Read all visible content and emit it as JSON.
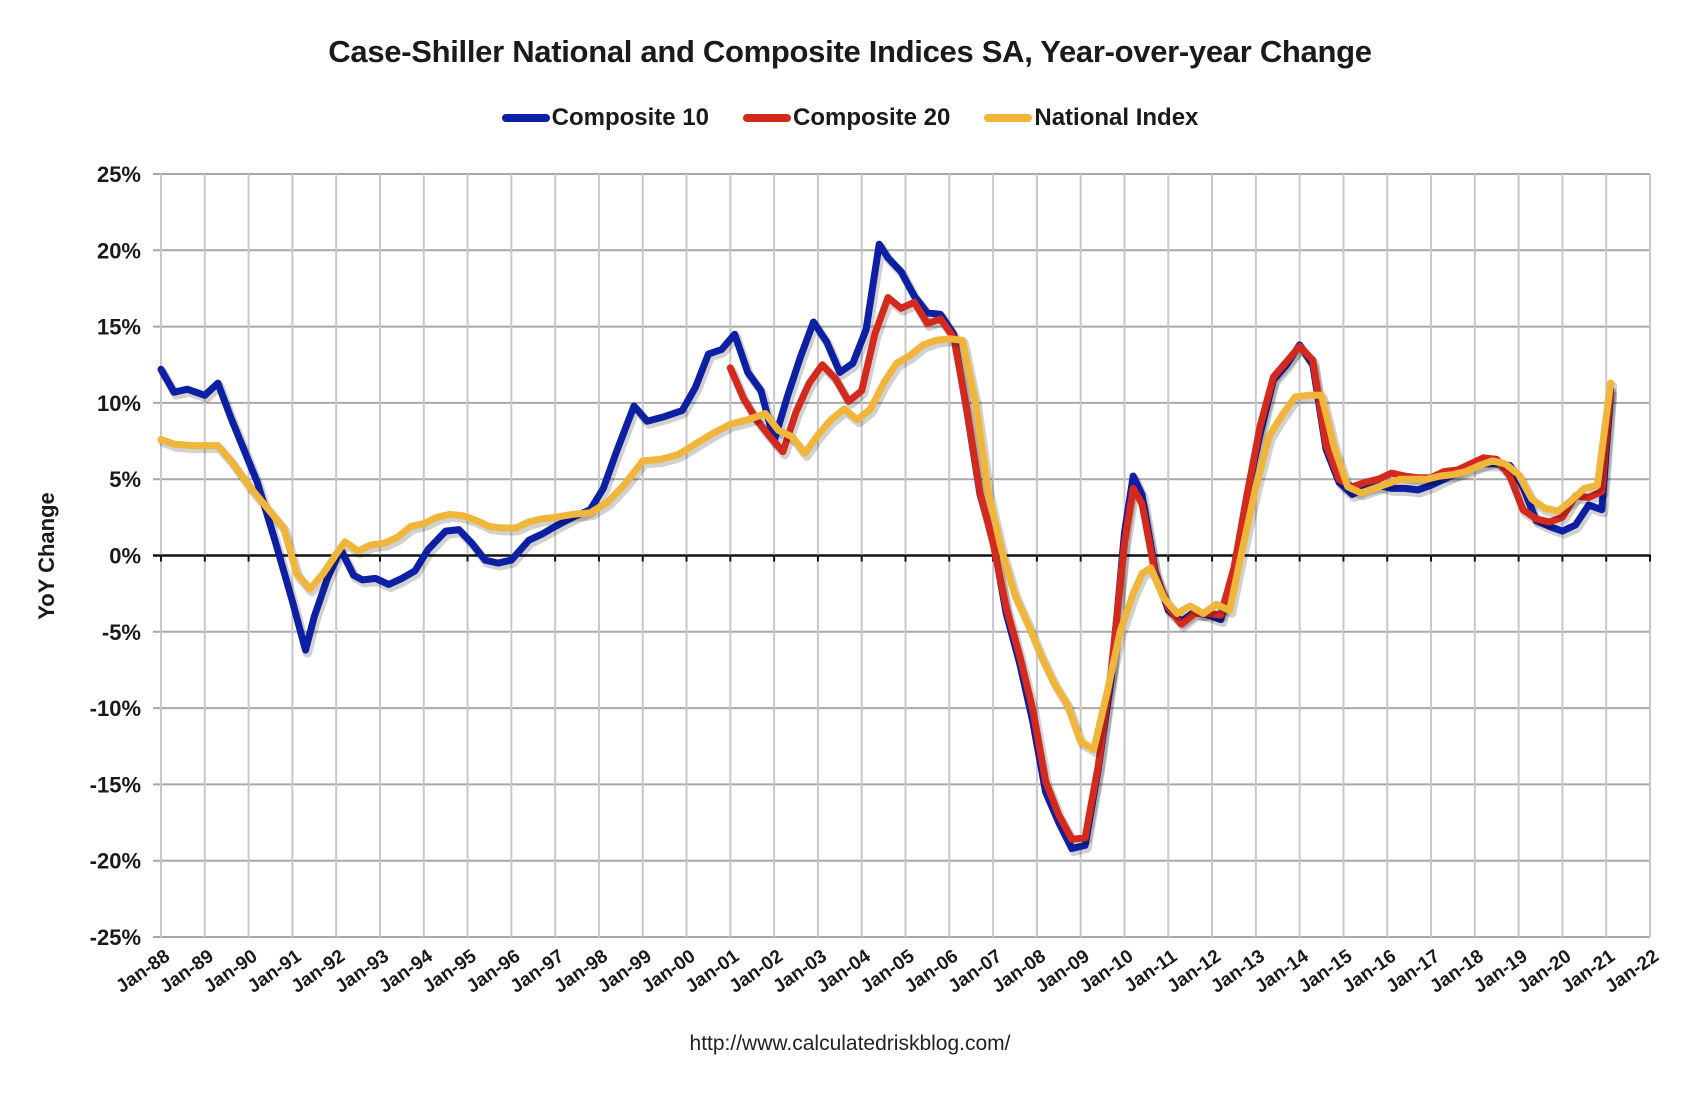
{
  "chart_data": {
    "type": "line",
    "title": "Case-Shiller National and Composite Indices SA, Year-over-year Change",
    "xlabel": "",
    "ylabel": "YoY Change",
    "source": "http://www.calculatedriskblog.com/",
    "ylim": [
      -25,
      25
    ],
    "yticks": [
      25,
      20,
      15,
      10,
      5,
      0,
      -5,
      -10,
      -15,
      -20,
      -25
    ],
    "ytick_labels": [
      "25%",
      "20%",
      "15%",
      "10%",
      "5%",
      "0%",
      "-5%",
      "-10%",
      "-15%",
      "-20%",
      "-25%"
    ],
    "xlim": [
      1988.0,
      2022.0
    ],
    "xtick_labels": [
      "Jan-88",
      "Jan-89",
      "Jan-90",
      "Jan-91",
      "Jan-92",
      "Jan-93",
      "Jan-94",
      "Jan-95",
      "Jan-96",
      "Jan-97",
      "Jan-98",
      "Jan-99",
      "Jan-00",
      "Jan-01",
      "Jan-02",
      "Jan-03",
      "Jan-04",
      "Jan-05",
      "Jan-06",
      "Jan-07",
      "Jan-08",
      "Jan-09",
      "Jan-10",
      "Jan-11",
      "Jan-12",
      "Jan-13",
      "Jan-14",
      "Jan-15",
      "Jan-16",
      "Jan-17",
      "Jan-18",
      "Jan-19",
      "Jan-20",
      "Jan-21",
      "Jan-22"
    ],
    "grid": true,
    "legend_position": "top-center",
    "series": [
      {
        "name": "Composite 10",
        "color": "#0d1fa3",
        "x": [
          1988.0,
          1988.3,
          1988.6,
          1989.0,
          1989.3,
          1989.6,
          1989.8,
          1990.2,
          1990.6,
          1991.0,
          1991.3,
          1991.5,
          1991.8,
          1992.1,
          1992.4,
          1992.6,
          1992.9,
          1993.2,
          1993.5,
          1993.8,
          1994.1,
          1994.5,
          1994.8,
          1995.1,
          1995.4,
          1995.7,
          1996.0,
          1996.4,
          1996.7,
          1997.0,
          1997.4,
          1997.8,
          1998.1,
          1998.4,
          1998.8,
          1999.1,
          1999.5,
          1999.9,
          2000.2,
          2000.5,
          2000.8,
          2001.1,
          2001.4,
          2001.7,
          2002.0,
          2002.3,
          2002.6,
          2002.9,
          2003.2,
          2003.5,
          2003.8,
          2004.1,
          2004.4,
          2004.6,
          2004.9,
          2005.2,
          2005.5,
          2005.8,
          2006.1,
          2006.4,
          2006.7,
          2007.0,
          2007.3,
          2007.6,
          2007.9,
          2008.2,
          2008.5,
          2008.8,
          2009.1,
          2009.4,
          2009.7,
          2010.0,
          2010.2,
          2010.4,
          2010.7,
          2011.0,
          2011.3,
          2011.6,
          2011.9,
          2012.2,
          2012.5,
          2012.8,
          2013.1,
          2013.4,
          2013.7,
          2014.0,
          2014.3,
          2014.6,
          2014.9,
          2015.2,
          2015.5,
          2015.8,
          2016.1,
          2016.4,
          2016.7,
          2017.0,
          2017.3,
          2017.6,
          2017.9,
          2018.2,
          2018.5,
          2018.8,
          2019.1,
          2019.4,
          2019.7,
          2020.0,
          2020.3,
          2020.6,
          2020.9,
          2021.1
        ],
        "values": [
          12.2,
          10.7,
          10.9,
          10.5,
          11.3,
          9.0,
          7.6,
          4.8,
          1.0,
          -3.0,
          -6.2,
          -4.0,
          -1.5,
          0.4,
          -1.3,
          -1.6,
          -1.5,
          -1.9,
          -1.5,
          -1.0,
          0.4,
          1.6,
          1.7,
          0.8,
          -0.3,
          -0.5,
          -0.3,
          1.0,
          1.4,
          1.9,
          2.5,
          3.0,
          4.4,
          6.8,
          9.8,
          8.8,
          9.1,
          9.5,
          11.0,
          13.2,
          13.5,
          14.5,
          12.0,
          10.8,
          7.5,
          10.4,
          13.0,
          15.3,
          14.0,
          12.0,
          12.6,
          14.8,
          20.4,
          19.5,
          18.6,
          17.0,
          15.9,
          15.8,
          14.5,
          9.5,
          4.0,
          1.0,
          -3.8,
          -7.0,
          -10.8,
          -15.5,
          -17.5,
          -19.2,
          -19.0,
          -14.0,
          -8.0,
          1.5,
          5.2,
          4.0,
          -1.0,
          -3.6,
          -4.3,
          -3.7,
          -3.9,
          -4.2,
          -1.0,
          4.0,
          8.0,
          11.5,
          12.5,
          13.8,
          12.5,
          7.0,
          4.8,
          4.0,
          4.4,
          4.6,
          4.4,
          4.4,
          4.3,
          4.6,
          5.0,
          5.4,
          5.8,
          6.0,
          6.0,
          5.9,
          4.5,
          2.3,
          1.9,
          1.6,
          2.0,
          3.3,
          3.0,
          10.7
        ]
      },
      {
        "name": "Composite 20",
        "color": "#d42a1e",
        "x": [
          2001.0,
          2001.3,
          2001.6,
          2001.9,
          2002.2,
          2002.5,
          2002.8,
          2003.1,
          2003.4,
          2003.7,
          2004.0,
          2004.3,
          2004.6,
          2004.9,
          2005.2,
          2005.5,
          2005.8,
          2006.1,
          2006.4,
          2006.7,
          2007.0,
          2007.3,
          2007.6,
          2007.9,
          2008.2,
          2008.5,
          2008.8,
          2009.1,
          2009.4,
          2009.7,
          2010.0,
          2010.2,
          2010.4,
          2010.7,
          2011.0,
          2011.3,
          2011.6,
          2011.9,
          2012.2,
          2012.5,
          2012.8,
          2013.1,
          2013.4,
          2013.7,
          2014.0,
          2014.3,
          2014.6,
          2014.9,
          2015.2,
          2015.5,
          2015.8,
          2016.1,
          2016.4,
          2016.7,
          2017.0,
          2017.3,
          2017.6,
          2017.9,
          2018.2,
          2018.5,
          2018.8,
          2019.1,
          2019.4,
          2019.7,
          2020.0,
          2020.3,
          2020.6,
          2020.9,
          2021.1
        ],
        "values": [
          12.3,
          10.3,
          8.9,
          7.8,
          6.8,
          9.4,
          11.3,
          12.5,
          11.6,
          10.1,
          10.8,
          14.5,
          16.9,
          16.2,
          16.6,
          15.2,
          15.5,
          14.3,
          9.6,
          4.1,
          0.8,
          -3.4,
          -6.5,
          -10.0,
          -14.8,
          -17.0,
          -18.6,
          -18.5,
          -13.8,
          -7.5,
          0.8,
          4.4,
          3.4,
          -1.2,
          -3.4,
          -4.5,
          -3.8,
          -3.8,
          -3.9,
          -0.8,
          4.0,
          8.5,
          11.7,
          12.7,
          13.7,
          12.8,
          7.3,
          5.0,
          4.5,
          4.8,
          5.0,
          5.4,
          5.2,
          5.1,
          5.1,
          5.5,
          5.6,
          6.0,
          6.4,
          6.3,
          5.2,
          3.0,
          2.4,
          2.2,
          2.5,
          3.9,
          3.8,
          4.2,
          10.9
        ]
      },
      {
        "name": "National Index",
        "color": "#f0b63c",
        "x": [
          1988.0,
          1988.3,
          1988.7,
          1989.0,
          1989.3,
          1989.6,
          1990.0,
          1990.4,
          1990.8,
          1991.1,
          1991.4,
          1991.7,
          1992.0,
          1992.2,
          1992.5,
          1992.8,
          1993.1,
          1993.4,
          1993.7,
          1994.0,
          1994.3,
          1994.6,
          1994.9,
          1995.2,
          1995.5,
          1995.8,
          1996.1,
          1996.4,
          1996.7,
          1997.0,
          1997.4,
          1997.8,
          1998.2,
          1998.6,
          1999.0,
          1999.4,
          1999.8,
          2000.2,
          2000.6,
          2001.0,
          2001.4,
          2001.8,
          2002.1,
          2002.4,
          2002.7,
          2003.0,
          2003.3,
          2003.6,
          2003.9,
          2004.2,
          2004.5,
          2004.8,
          2005.1,
          2005.4,
          2005.7,
          2006.0,
          2006.3,
          2006.6,
          2006.9,
          2007.2,
          2007.5,
          2007.8,
          2008.1,
          2008.4,
          2008.7,
          2009.0,
          2009.3,
          2009.6,
          2009.9,
          2010.2,
          2010.4,
          2010.6,
          2010.9,
          2011.2,
          2011.5,
          2011.8,
          2012.1,
          2012.4,
          2012.7,
          2013.0,
          2013.3,
          2013.6,
          2013.9,
          2014.2,
          2014.5,
          2014.8,
          2015.1,
          2015.4,
          2015.7,
          2016.0,
          2016.3,
          2016.6,
          2016.9,
          2017.2,
          2017.5,
          2017.8,
          2018.1,
          2018.4,
          2018.7,
          2019.0,
          2019.3,
          2019.6,
          2019.9,
          2020.2,
          2020.5,
          2020.8,
          2021.1
        ],
        "values": [
          7.6,
          7.3,
          7.2,
          7.2,
          7.2,
          6.2,
          4.6,
          3.2,
          1.8,
          -1.2,
          -2.2,
          -1.2,
          0.1,
          0.9,
          0.3,
          0.7,
          0.8,
          1.2,
          1.9,
          2.1,
          2.5,
          2.7,
          2.6,
          2.3,
          1.9,
          1.8,
          1.8,
          2.2,
          2.4,
          2.5,
          2.7,
          2.8,
          3.5,
          4.7,
          6.2,
          6.3,
          6.6,
          7.3,
          8.0,
          8.6,
          8.9,
          9.3,
          8.2,
          7.8,
          6.7,
          7.9,
          8.9,
          9.6,
          8.9,
          9.6,
          11.3,
          12.6,
          13.1,
          13.8,
          14.1,
          14.2,
          14.1,
          10.0,
          4.0,
          0.3,
          -2.6,
          -4.5,
          -6.6,
          -8.4,
          -9.8,
          -12.2,
          -12.7,
          -9.0,
          -5.0,
          -2.5,
          -1.2,
          -0.8,
          -2.8,
          -3.8,
          -3.3,
          -3.8,
          -3.2,
          -3.6,
          0.5,
          4.5,
          7.8,
          9.2,
          10.4,
          10.5,
          10.5,
          7.0,
          4.5,
          4.1,
          4.4,
          4.7,
          5.0,
          5.0,
          5.0,
          5.2,
          5.3,
          5.5,
          5.9,
          6.2,
          6.0,
          5.3,
          3.7,
          3.1,
          2.9,
          3.6,
          4.4,
          4.6,
          11.3
        ]
      }
    ]
  }
}
